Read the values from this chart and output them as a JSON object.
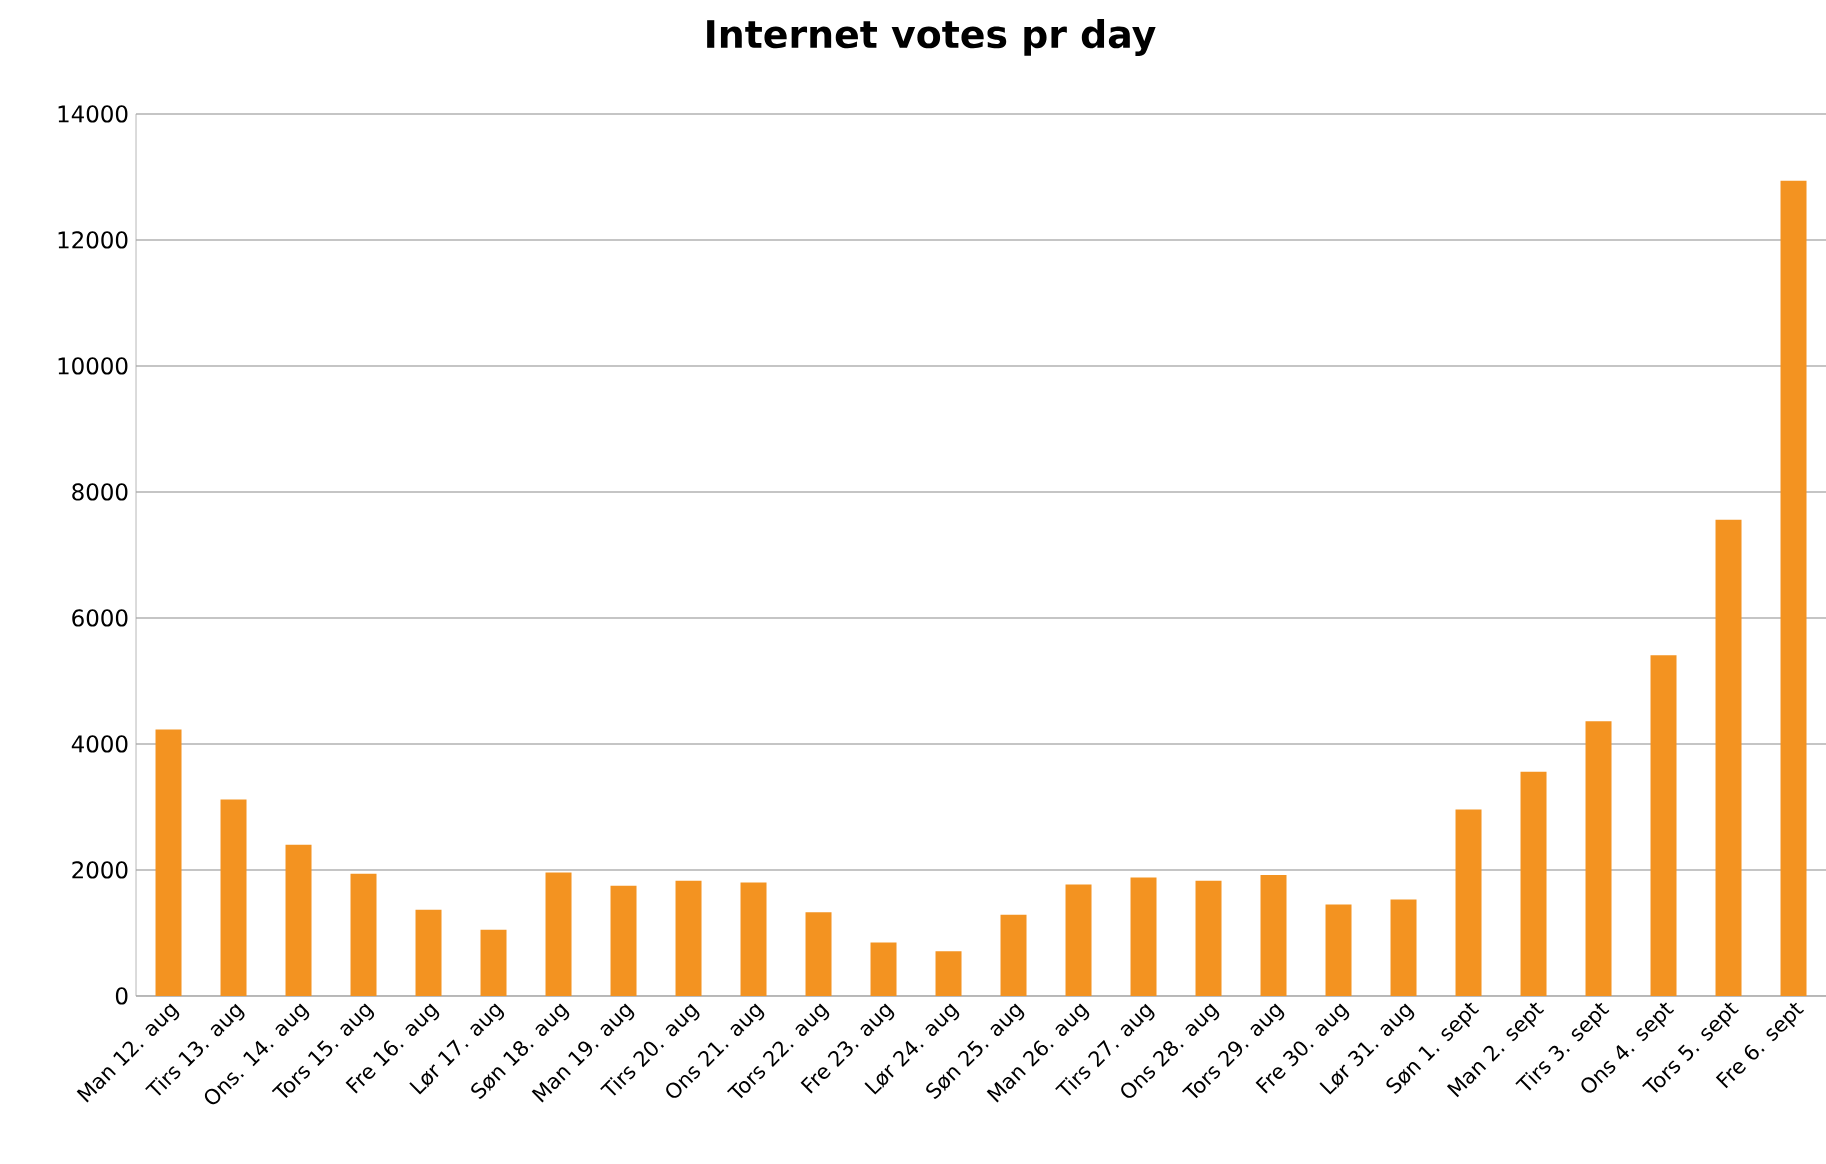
{
  "chart_data": {
    "type": "bar",
    "title": "Internet votes pr day",
    "categories": [
      "Man 12. aug",
      "Tirs 13. aug",
      "Ons. 14. aug",
      "Tors 15. aug",
      "Fre 16. aug",
      "Lør 17. aug",
      "Søn 18. aug",
      "Man 19. aug",
      "Tirs 20. aug",
      "Ons 21. aug",
      "Tors 22. aug",
      "Fre 23. aug",
      "Lør 24. aug",
      "Søn 25. aug",
      "Man 26. aug",
      "Tirs 27. aug",
      "Ons 28. aug",
      "Tors 29. aug",
      "Fre 30. aug",
      "Lør 31. aug",
      "Søn 1. sept",
      "Man 2. sept",
      "Tirs 3. sept",
      "Ons 4. sept",
      "Tors 5. sept",
      "Fre 6. sept"
    ],
    "values": [
      4230,
      3120,
      2400,
      1940,
      1370,
      1050,
      1960,
      1750,
      1830,
      1800,
      1330,
      850,
      710,
      1290,
      1770,
      1880,
      1830,
      1920,
      1450,
      1530,
      2960,
      3560,
      4360,
      5410,
      7560,
      12940
    ],
    "color": "#f39321",
    "ylim": [
      0,
      14000
    ],
    "yticks": [
      0,
      2000,
      4000,
      6000,
      8000,
      10000,
      12000,
      14000
    ],
    "grid": "y"
  }
}
